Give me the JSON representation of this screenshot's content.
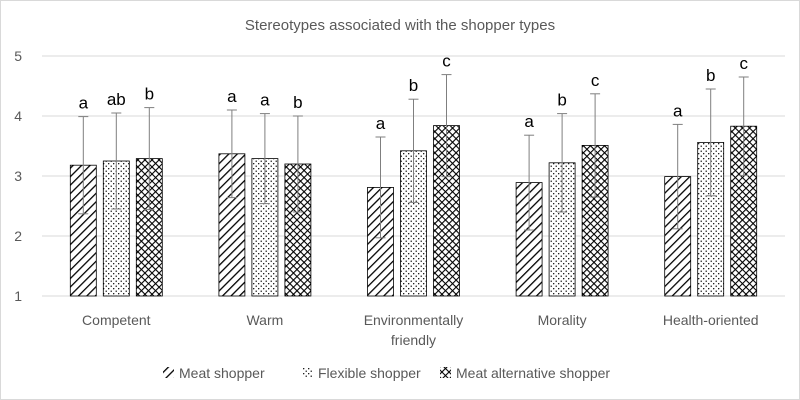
{
  "chart_data": {
    "type": "bar",
    "title": "Stereotypes associated with the shopper types",
    "xlabel": "",
    "ylabel": "",
    "ylim": [
      1,
      5
    ],
    "yticks": [
      1,
      2,
      3,
      4,
      5
    ],
    "grid": true,
    "legend_position": "bottom",
    "categories": [
      [
        "Competent"
      ],
      [
        "Warm"
      ],
      [
        "Environmentally",
        "friendly"
      ],
      [
        "Morality"
      ],
      [
        "Health-oriented"
      ]
    ],
    "series": [
      {
        "name": "Meat shopper",
        "pattern": "diagonal-lines",
        "values": [
          3.18,
          3.37,
          2.81,
          2.89,
          2.99
        ],
        "error": [
          0.81,
          0.73,
          0.84,
          0.79,
          0.87
        ],
        "significance": [
          "a",
          "a",
          "a",
          "a",
          "a"
        ]
      },
      {
        "name": "Flexible shopper",
        "pattern": "dots",
        "values": [
          3.25,
          3.29,
          3.42,
          3.22,
          3.56
        ],
        "error": [
          0.8,
          0.75,
          0.86,
          0.82,
          0.89
        ],
        "significance": [
          "ab",
          "a",
          "b",
          "b",
          "b"
        ]
      },
      {
        "name": "Meat alternative shopper",
        "pattern": "crosshatch",
        "values": [
          3.29,
          3.2,
          3.84,
          3.51,
          3.83
        ],
        "error": [
          0.85,
          0.8,
          0.85,
          0.86,
          0.82
        ],
        "significance": [
          "b",
          "b",
          "c",
          "c",
          "c"
        ]
      }
    ]
  },
  "colors": {
    "bar_ink": "#000000",
    "gridline": "#d9d9d9",
    "axis_text": "#595959",
    "error_bar": "#7f7f7f"
  }
}
